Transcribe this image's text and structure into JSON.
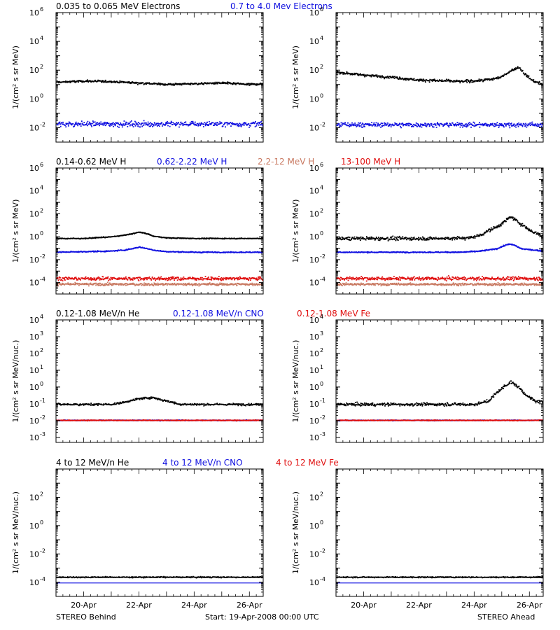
{
  "footer": {
    "left": "STEREO Behind",
    "center": "Start: 19-Apr-2008 00:00 UTC",
    "right": "STEREO Ahead"
  },
  "chart_data": [
    {
      "type": "scatter",
      "row": 1,
      "title_segments": [
        {
          "text": "0.035 to 0.065 MeV Electrons",
          "color": "#000000"
        },
        {
          "text": "0.7 to 4.0 Mev Electrons",
          "color": "#1010e0"
        }
      ],
      "ylabel": "1/(cm² s sr MeV)",
      "yscale": "log",
      "ylim_exp": [
        -3,
        6
      ],
      "yticks_exp": [
        -2,
        0,
        2,
        4,
        6
      ],
      "x_range_days": [
        0,
        7.5
      ],
      "panels": [
        {
          "spacecraft": "STEREO Behind",
          "series": [
            {
              "name": "0.035 to 0.065 MeV Electrons",
              "color": "#000000",
              "days": [
                0,
                1,
                2,
                3,
                4,
                5,
                6,
                7,
                7.5
              ],
              "log10_flux": [
                1.2,
                1.28,
                1.25,
                1.15,
                1.05,
                1.1,
                1.15,
                1.05,
                1.1
              ],
              "scatter": 0.1
            },
            {
              "name": "0.7 to 4.0 Mev Electrons",
              "color": "#1010e0",
              "days": [
                0,
                7.5
              ],
              "log10_flux": [
                -1.7,
                -1.7
              ],
              "scatter": 0.25
            }
          ]
        },
        {
          "spacecraft": "STEREO Ahead",
          "series": [
            {
              "name": "0.035 to 0.065 MeV Electrons",
              "color": "#000000",
              "days": [
                0,
                1,
                2,
                3,
                4,
                4.5,
                5,
                5.3,
                5.6,
                6,
                6.3,
                6.6,
                6.8,
                7.1,
                7.5
              ],
              "log10_flux": [
                1.9,
                1.7,
                1.55,
                1.35,
                1.3,
                1.25,
                1.3,
                1.35,
                1.4,
                1.6,
                2.0,
                2.25,
                1.8,
                1.3,
                1.05
              ],
              "scatter": 0.12
            },
            {
              "name": "0.7 to 4.0 Mev Electrons",
              "color": "#1010e0",
              "days": [
                0,
                7.5
              ],
              "log10_flux": [
                -1.75,
                -1.75
              ],
              "scatter": 0.22
            }
          ]
        }
      ]
    },
    {
      "type": "scatter",
      "row": 2,
      "title_segments": [
        {
          "text": "0.14-0.62 MeV H",
          "color": "#000000"
        },
        {
          "text": "0.62-2.22 MeV H",
          "color": "#1010e0"
        },
        {
          "text": "2.2-12 MeV H",
          "color": "#c87860"
        },
        {
          "text": "13-100 MeV H",
          "color": "#e01010"
        }
      ],
      "ylabel": "1/(cm² s sr MeV)",
      "yscale": "log",
      "ylim_exp": [
        -5,
        6
      ],
      "yticks_exp": [
        -4,
        -2,
        0,
        2,
        4,
        6
      ],
      "x_range_days": [
        0,
        7.5
      ],
      "panels": [
        {
          "spacecraft": "STEREO Behind",
          "series": [
            {
              "name": "0.14-0.62 MeV H",
              "color": "#000000",
              "days": [
                0,
                1,
                2,
                2.5,
                3.0,
                3.3,
                3.5,
                4,
                5,
                7.5
              ],
              "log10_flux": [
                -0.1,
                -0.1,
                0.05,
                0.2,
                0.45,
                0.3,
                0.1,
                -0.05,
                -0.1,
                -0.1
              ],
              "scatter": 0.05
            },
            {
              "name": "0.62-2.22 MeV H",
              "color": "#1010e0",
              "days": [
                0,
                1,
                2,
                2.5,
                3.0,
                3.3,
                3.6,
                4,
                5,
                7.5
              ],
              "log10_flux": [
                -1.3,
                -1.25,
                -1.2,
                -1.1,
                -0.85,
                -1.0,
                -1.15,
                -1.25,
                -1.3,
                -1.3
              ],
              "scatter": 0.06
            },
            {
              "name": "2.2-12 MeV H",
              "color": "#c87860",
              "days": [
                0,
                7.5
              ],
              "log10_flux": [
                -4.1,
                -4.1
              ],
              "scatter": 0.15
            },
            {
              "name": "13-100 MeV H",
              "color": "#e01010",
              "days": [
                0,
                7.5
              ],
              "log10_flux": [
                -3.6,
                -3.6
              ],
              "scatter": 0.2
            }
          ]
        },
        {
          "spacecraft": "STEREO Ahead",
          "series": [
            {
              "name": "0.14-0.62 MeV H",
              "color": "#000000",
              "days": [
                0,
                4,
                4.8,
                5.2,
                5.5,
                5.8,
                6.1,
                6.3,
                6.6,
                7.0,
                7.5
              ],
              "log10_flux": [
                -0.1,
                -0.1,
                -0.05,
                0.2,
                0.6,
                0.9,
                1.4,
                1.8,
                1.3,
                0.6,
                0.1
              ],
              "scatter": 0.2
            },
            {
              "name": "0.62-2.22 MeV H",
              "color": "#1010e0",
              "days": [
                0,
                4.5,
                5.2,
                5.8,
                6.2,
                6.4,
                6.7,
                7.5
              ],
              "log10_flux": [
                -1.3,
                -1.3,
                -1.2,
                -1.0,
                -0.6,
                -0.65,
                -1.0,
                -1.2
              ],
              "scatter": 0.06
            },
            {
              "name": "2.2-12 MeV H",
              "color": "#c87860",
              "days": [
                0,
                7.5
              ],
              "log10_flux": [
                -4.1,
                -4.1
              ],
              "scatter": 0.15
            },
            {
              "name": "13-100 MeV H",
              "color": "#e01010",
              "days": [
                0,
                7.5
              ],
              "log10_flux": [
                -3.6,
                -3.6
              ],
              "scatter": 0.2
            }
          ]
        }
      ]
    },
    {
      "type": "scatter",
      "row": 3,
      "title_segments": [
        {
          "text": "0.12-1.08 MeV/n He",
          "color": "#000000"
        },
        {
          "text": "0.12-1.08 MeV/n CNO",
          "color": "#1010e0"
        },
        {
          "text": "0.12-1.08 MeV Fe",
          "color": "#e01010"
        }
      ],
      "ylabel": "1/(cm² s sr MeV/nuc.)",
      "yscale": "log",
      "ylim_exp": [
        -3.3,
        4
      ],
      "yticks_exp": [
        -3,
        -2,
        -1,
        0,
        1,
        2,
        3,
        4
      ],
      "x_range_days": [
        0,
        7.5
      ],
      "panels": [
        {
          "spacecraft": "STEREO Behind",
          "series": [
            {
              "name": "0.12-1.08 MeV/n He",
              "color": "#000000",
              "days": [
                0,
                2,
                2.5,
                3,
                3.5,
                4,
                4.5,
                7.5
              ],
              "log10_flux": [
                -1.0,
                -1.0,
                -0.85,
                -0.65,
                -0.6,
                -0.8,
                -1.0,
                -1.0
              ],
              "scatter": 0.08
            },
            {
              "name": "0.12-1.08 MeV/n CNO",
              "color": "#1010e0",
              "days": [
                0,
                7.5
              ],
              "log10_flux": [
                -1.95,
                -1.95
              ],
              "scatter": 0.03
            },
            {
              "name": "0.12-1.08 MeV Fe",
              "color": "#e01010",
              "days": [
                0,
                7.5
              ],
              "log10_flux": [
                -1.95,
                -1.95
              ],
              "scatter": 0.03
            }
          ]
        },
        {
          "spacecraft": "STEREO Ahead",
          "series": [
            {
              "name": "0.12-1.08 MeV/n He",
              "color": "#000000",
              "days": [
                0,
                5,
                5.5,
                5.8,
                6.1,
                6.3,
                6.6,
                6.9,
                7.2,
                7.5
              ],
              "log10_flux": [
                -1.0,
                -1.0,
                -0.8,
                -0.3,
                0.1,
                0.35,
                0.0,
                -0.5,
                -0.8,
                -0.9
              ],
              "scatter": 0.12
            },
            {
              "name": "0.12-1.08 MeV/n CNO",
              "color": "#1010e0",
              "days": [
                0,
                7.5
              ],
              "log10_flux": [
                -1.95,
                -1.95
              ],
              "scatter": 0.03
            },
            {
              "name": "0.12-1.08 MeV Fe",
              "color": "#e01010",
              "days": [
                0,
                7.5
              ],
              "log10_flux": [
                -1.95,
                -1.95
              ],
              "scatter": 0.03
            }
          ]
        }
      ]
    },
    {
      "type": "scatter",
      "row": 4,
      "title_segments": [
        {
          "text": "4 to 12 MeV/n He",
          "color": "#000000"
        },
        {
          "text": "4 to 12 MeV/n CNO",
          "color": "#1010e0"
        },
        {
          "text": "4 to 12 MeV Fe",
          "color": "#e01010"
        }
      ],
      "ylabel": "1/(cm² s sr MeV/nuc.)",
      "yscale": "log",
      "ylim_exp": [
        -5,
        4
      ],
      "yticks_exp": [
        -4,
        -2,
        0,
        2
      ],
      "x_range_days": [
        0,
        7.5
      ],
      "xtick_days": [
        1,
        3,
        5,
        7
      ],
      "xtick_labels": [
        "20-Apr",
        "22-Apr",
        "24-Apr",
        "26-Apr"
      ],
      "panels": [
        {
          "spacecraft": "STEREO Behind",
          "series": [
            {
              "name": "4 to 12 MeV/n He",
              "color": "#000000",
              "days": [
                0,
                7.5
              ],
              "log10_flux": [
                -3.6,
                -3.6
              ],
              "scatter": 0.05
            },
            {
              "name": "4 to 12 MeV/n CNO",
              "color": "#1010e0",
              "days": [
                0,
                7.5
              ],
              "log10_flux": [
                -4.05,
                -4.05
              ],
              "scatter": 0.0
            }
          ]
        },
        {
          "spacecraft": "STEREO Ahead",
          "series": [
            {
              "name": "4 to 12 MeV/n He",
              "color": "#000000",
              "days": [
                0,
                7.5
              ],
              "log10_flux": [
                -3.6,
                -3.6
              ],
              "scatter": 0.05
            },
            {
              "name": "4 to 12 MeV/n CNO",
              "color": "#1010e0",
              "days": [
                0,
                7.5
              ],
              "log10_flux": [
                -4.05,
                -4.05
              ],
              "scatter": 0.0
            }
          ]
        }
      ]
    }
  ]
}
